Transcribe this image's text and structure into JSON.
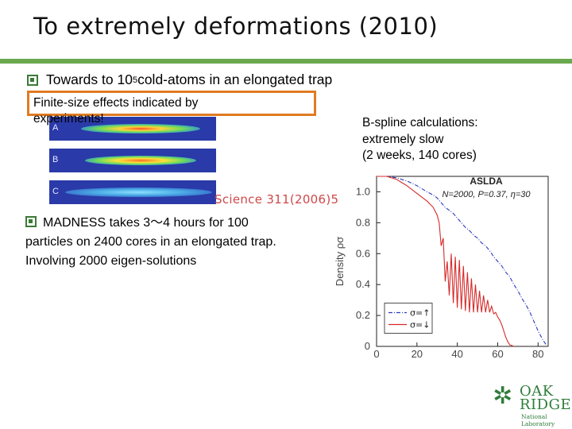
{
  "slide": {
    "title": "To extremely deformations (2010)",
    "bullet1_prefix": "Towards to 10",
    "bullet1_sup": "5",
    "bullet1_suffix": " cold-atoms in an elongated trap",
    "finite_size_note": "Finite-size effects indicated by experiments!",
    "atom_images": {
      "labels": [
        "A",
        "B",
        "C"
      ]
    },
    "science_ref": "Science 311(2006)5",
    "bspline_line1": "B-spline calculations:",
    "bspline_line2": "extremely slow",
    "bspline_line3": "(2 weeks, 140 cores)",
    "madness_line1": "MADNESS takes 3～4 hours for 100",
    "madness_line2": "particles on 2400 cores in an elongated trap.",
    "madness_line3": "Involving 2000 eigen-solutions",
    "logo_oak": "OAK",
    "logo_ridge": "RIDGE",
    "logo_natlab": "National Laboratory"
  },
  "colors": {
    "accent_green": "#6aa84f",
    "highlight_orange": "#e07b22",
    "series_up": "#2b3bbf",
    "series_down": "#d62a2a",
    "science_red": "#d0484a"
  },
  "chart_data": {
    "type": "line",
    "title": "ASLDA",
    "subtitle": "N=2000, P=0.37, η=30",
    "xlabel": "",
    "ylabel": "Density ρσ",
    "xlim": [
      0,
      85
    ],
    "ylim": [
      0,
      1.1
    ],
    "x_ticks": [
      0,
      20,
      40,
      60,
      80
    ],
    "y_ticks": [
      0,
      0.2,
      0.4,
      0.6,
      0.8,
      1.0
    ],
    "y_tick_labels": [
      "0",
      "0.2",
      "0.4",
      "0.6",
      "0.8",
      "1.0"
    ],
    "legend": {
      "placement": "bottom-left",
      "entries": [
        "σ=↑",
        "σ=↓"
      ]
    },
    "series": [
      {
        "name": "σ=↑",
        "style": "dash-dot",
        "x": [
          0,
          5,
          10,
          15,
          20,
          25,
          28,
          30,
          32,
          34,
          36,
          38,
          40,
          42,
          44,
          46,
          48,
          50,
          52,
          54,
          56,
          58,
          60,
          62,
          64,
          66,
          68,
          70,
          72,
          74,
          76,
          78,
          80,
          82,
          84
        ],
        "y": [
          1.12,
          1.11,
          1.09,
          1.07,
          1.04,
          1.0,
          0.98,
          0.96,
          0.93,
          0.9,
          0.88,
          0.86,
          0.83,
          0.8,
          0.77,
          0.75,
          0.72,
          0.7,
          0.67,
          0.65,
          0.62,
          0.58,
          0.55,
          0.52,
          0.48,
          0.45,
          0.4,
          0.36,
          0.31,
          0.27,
          0.22,
          0.16,
          0.1,
          0.05,
          0.01
        ]
      },
      {
        "name": "σ=↓",
        "style": "solid",
        "x": [
          0,
          5,
          10,
          15,
          20,
          25,
          28,
          30,
          31,
          32,
          33,
          34,
          35,
          36,
          37,
          38,
          39,
          40,
          41,
          42,
          43,
          44,
          45,
          46,
          47,
          48,
          49,
          50,
          51,
          52,
          53,
          54,
          55,
          56,
          57,
          58,
          59,
          60,
          61,
          62,
          63,
          64,
          65,
          66,
          67,
          68
        ],
        "y": [
          1.12,
          1.1,
          1.08,
          1.04,
          0.99,
          0.94,
          0.9,
          0.85,
          0.8,
          0.65,
          0.7,
          0.42,
          0.55,
          0.33,
          0.6,
          0.28,
          0.58,
          0.25,
          0.56,
          0.24,
          0.52,
          0.23,
          0.48,
          0.22,
          0.44,
          0.22,
          0.4,
          0.22,
          0.36,
          0.22,
          0.33,
          0.22,
          0.3,
          0.22,
          0.26,
          0.21,
          0.22,
          0.19,
          0.17,
          0.14,
          0.1,
          0.06,
          0.03,
          0.01,
          0.005,
          0.0
        ]
      }
    ]
  }
}
